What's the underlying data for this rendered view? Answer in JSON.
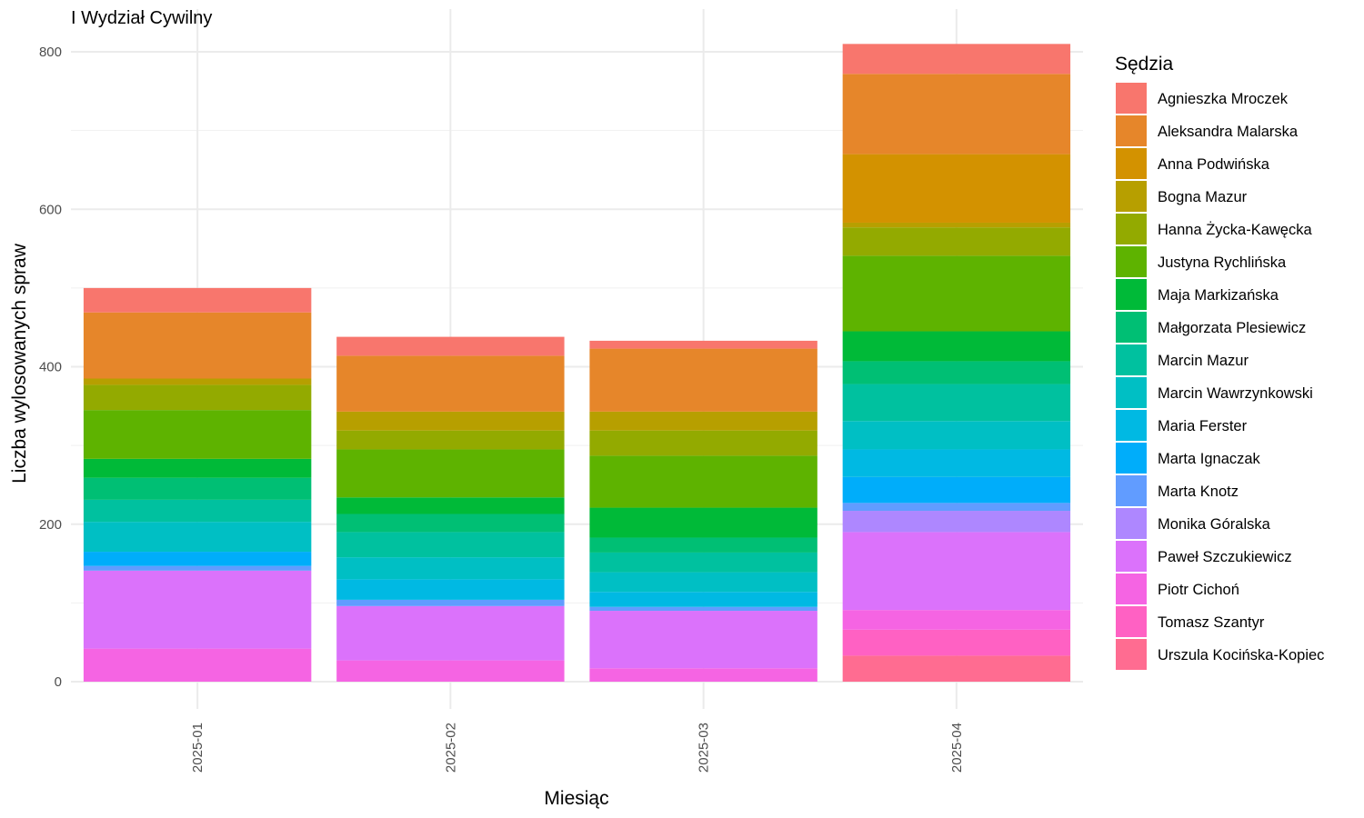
{
  "chart_data": {
    "type": "bar",
    "stacked": true,
    "title": "I Wydział Cywilny",
    "xlabel": "Miesiąc",
    "ylabel": "Liczba wylosowanych spraw",
    "ylim": [
      0,
      810
    ],
    "yticks": [
      0,
      200,
      400,
      600,
      800
    ],
    "grid": true,
    "legend_title": "Sędzia",
    "legend_position": "right",
    "categories": [
      "2025-01",
      "2025-02",
      "2025-03",
      "2025-04"
    ],
    "series": [
      {
        "name": "Agnieszka Mroczek",
        "color": "#F8766D",
        "values": [
          31,
          24,
          10,
          38
        ]
      },
      {
        "name": "Aleksandra Malarska",
        "color": "#E6862A",
        "values": [
          84,
          71,
          80,
          102
        ]
      },
      {
        "name": "Anna Podwińska",
        "color": "#D39200",
        "values": [
          0,
          0,
          0,
          87
        ]
      },
      {
        "name": "Bogna Mazur",
        "color": "#B79F00",
        "values": [
          8,
          24,
          24,
          6
        ]
      },
      {
        "name": "Hanna Życka-Kawęcka",
        "color": "#93AA00",
        "values": [
          32,
          24,
          32,
          36
        ]
      },
      {
        "name": "Justyna Rychlińska",
        "color": "#5EB300",
        "values": [
          62,
          61,
          66,
          96
        ]
      },
      {
        "name": "Maja Markizańska",
        "color": "#00BA38",
        "values": [
          24,
          21,
          38,
          38
        ]
      },
      {
        "name": "Małgorzata Plesiewicz",
        "color": "#00BF74",
        "values": [
          28,
          23,
          19,
          29
        ]
      },
      {
        "name": "Marcin Mazur",
        "color": "#00C19F",
        "values": [
          28,
          32,
          25,
          47
        ]
      },
      {
        "name": "Marcin Wawrzynkowski",
        "color": "#00BFC4",
        "values": [
          38,
          28,
          25,
          36
        ]
      },
      {
        "name": "Maria Ferster",
        "color": "#00B9E3",
        "values": [
          0,
          26,
          19,
          35
        ]
      },
      {
        "name": "Marta Ignaczak",
        "color": "#00ADFA",
        "values": [
          18,
          0,
          0,
          33
        ]
      },
      {
        "name": "Marta Knotz",
        "color": "#619CFF",
        "values": [
          6,
          8,
          5,
          10
        ]
      },
      {
        "name": "Monika Góralska",
        "color": "#AE87FF",
        "values": [
          0,
          0,
          0,
          27
        ]
      },
      {
        "name": "Paweł Szczukiewicz",
        "color": "#DB72FB",
        "values": [
          99,
          69,
          73,
          99
        ]
      },
      {
        "name": "Piotr Cichoń",
        "color": "#F564E3",
        "values": [
          42,
          27,
          17,
          25
        ]
      },
      {
        "name": "Tomasz Szantyr",
        "color": "#FF61C3",
        "values": [
          0,
          0,
          0,
          33
        ]
      },
      {
        "name": "Urszula Kocińska-Kopiec",
        "color": "#FF6C91",
        "values": [
          0,
          0,
          0,
          33
        ]
      }
    ]
  }
}
